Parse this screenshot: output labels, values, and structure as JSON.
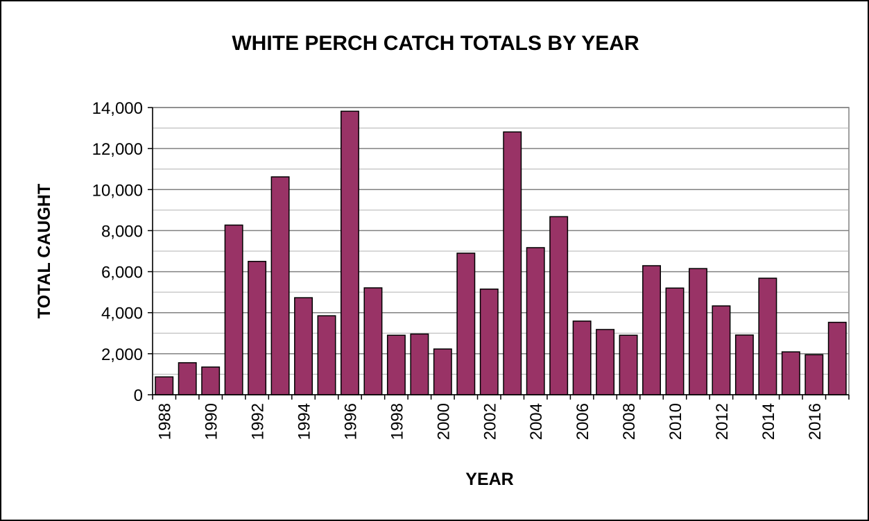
{
  "chart_data": {
    "type": "bar",
    "title": "WHITE PERCH CATCH TOTALS BY YEAR",
    "xlabel": "YEAR",
    "ylabel": "TOTAL CAUGHT",
    "ylim": [
      0,
      14000
    ],
    "y_ticks": [
      "0",
      "2,000",
      "4,000",
      "6,000",
      "8,000",
      "10,000",
      "12,000",
      "14,000"
    ],
    "y_tick_values": [
      0,
      2000,
      4000,
      6000,
      8000,
      10000,
      12000,
      14000
    ],
    "grid": true,
    "legend": "none",
    "categories": [
      "1988",
      "1989",
      "1990",
      "1991",
      "1992",
      "1993",
      "1994",
      "1995",
      "1996",
      "1997",
      "1998",
      "1999",
      "2000",
      "2001",
      "2002",
      "2003",
      "2004",
      "2005",
      "2006",
      "2007",
      "2008",
      "2009",
      "2010",
      "2011",
      "2012",
      "2013",
      "2014",
      "2015",
      "2016",
      "2017"
    ],
    "x_tick_labels": [
      "1988",
      "",
      "1990",
      "",
      "1992",
      "",
      "1994",
      "",
      "1996",
      "",
      "1998",
      "",
      "2000",
      "",
      "2002",
      "",
      "2004",
      "",
      "2006",
      "",
      "2008",
      "",
      "2010",
      "",
      "2012",
      "",
      "2014",
      "",
      "2016",
      ""
    ],
    "values": [
      870,
      1560,
      1350,
      8270,
      6500,
      10620,
      4730,
      3850,
      13820,
      5210,
      2900,
      2960,
      2230,
      6900,
      5150,
      12810,
      7170,
      8680,
      3590,
      3180,
      2900,
      6290,
      5200,
      6150,
      4330,
      2910,
      5680,
      2090,
      1950,
      3530
    ]
  },
  "colors": {
    "bar_fill": "#993366",
    "bar_stroke": "#000000",
    "grid": "#808080",
    "background": "#ffffff"
  }
}
